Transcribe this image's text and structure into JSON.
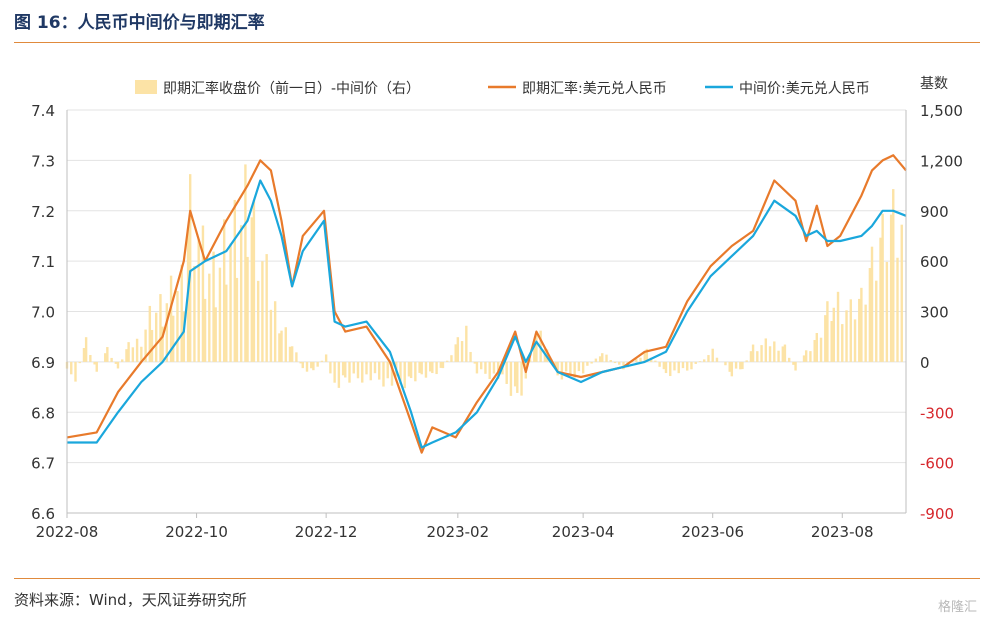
{
  "header": {
    "title": "图 16：人民币中间价与即期汇率"
  },
  "footer": {
    "source": "资料来源：Wind，天风证券研究所",
    "watermark": "格隆汇"
  },
  "colors": {
    "spot": "#e87a2b",
    "mid": "#1aa7dc",
    "spread": "#fce3a6",
    "negative_tick": "#d6262b",
    "header": "#1f3864"
  },
  "chart_data": {
    "type": "bar+line",
    "right_axis_title": "基数",
    "legend_position": "top",
    "x_ticks": [
      "2022-08",
      "2022-10",
      "2022-12",
      "2023-02",
      "2023-04",
      "2023-06",
      "2023-08"
    ],
    "x_range": [
      "2022-08-01",
      "2023-08-31"
    ],
    "y_left": {
      "ticks": [
        "6.6",
        "6.7",
        "6.8",
        "6.9",
        "7.0",
        "7.1",
        "7.2",
        "7.3",
        "7.4"
      ],
      "range": [
        6.6,
        7.4
      ]
    },
    "y_right": {
      "ticks": [
        "-900",
        "-600",
        "-300",
        "0",
        "300",
        "600",
        "900",
        "1,200",
        "1,500"
      ],
      "range": [
        -900,
        1500
      ]
    },
    "series": [
      {
        "name": "即期汇率收盘价（前一日）-中间价（右）",
        "kind": "bar",
        "axis": "right",
        "points": [
          [
            "2022-08-01",
            -80
          ],
          [
            "2022-08-05",
            -120
          ],
          [
            "2022-08-10",
            150
          ],
          [
            "2022-08-15",
            -60
          ],
          [
            "2022-08-20",
            90
          ],
          [
            "2022-08-25",
            -40
          ],
          [
            "2022-08-30",
            120
          ],
          [
            "2022-09-05",
            180
          ],
          [
            "2022-09-10",
            380
          ],
          [
            "2022-09-15",
            420
          ],
          [
            "2022-09-20",
            550
          ],
          [
            "2022-09-25",
            600
          ],
          [
            "2022-09-28",
            1300
          ],
          [
            "2022-10-05",
            750
          ],
          [
            "2022-10-10",
            650
          ],
          [
            "2022-10-15",
            920
          ],
          [
            "2022-10-20",
            1000
          ],
          [
            "2022-10-25",
            1250
          ],
          [
            "2022-10-28",
            1120
          ],
          [
            "2022-11-05",
            500
          ],
          [
            "2022-11-10",
            300
          ],
          [
            "2022-11-15",
            150
          ],
          [
            "2022-11-20",
            -60
          ],
          [
            "2022-11-25",
            -80
          ],
          [
            "2022-12-01",
            60
          ],
          [
            "2022-12-05",
            -200
          ],
          [
            "2022-12-10",
            -150
          ],
          [
            "2022-12-20",
            -120
          ],
          [
            "2023-01-05",
            -180
          ],
          [
            "2023-01-10",
            -130
          ],
          [
            "2023-01-15",
            -100
          ],
          [
            "2023-01-20",
            -90
          ],
          [
            "2023-01-25",
            -50
          ],
          [
            "2023-02-01",
            150
          ],
          [
            "2023-02-05",
            250
          ],
          [
            "2023-02-10",
            -80
          ],
          [
            "2023-02-20",
            -120
          ],
          [
            "2023-03-01",
            -250
          ],
          [
            "2023-03-05",
            -160
          ],
          [
            "2023-03-10",
            280
          ],
          [
            "2023-03-15",
            120
          ],
          [
            "2023-03-20",
            -130
          ],
          [
            "2023-04-01",
            -80
          ],
          [
            "2023-04-10",
            70
          ],
          [
            "2023-04-20",
            -60
          ],
          [
            "2023-05-01",
            90
          ],
          [
            "2023-05-10",
            -90
          ],
          [
            "2023-05-20",
            -70
          ],
          [
            "2023-06-01",
            80
          ],
          [
            "2023-06-10",
            -100
          ],
          [
            "2023-06-15",
            -50
          ],
          [
            "2023-06-20",
            120
          ],
          [
            "2023-06-28",
            150
          ],
          [
            "2023-07-05",
            120
          ],
          [
            "2023-07-10",
            -60
          ],
          [
            "2023-07-15",
            80
          ],
          [
            "2023-07-20",
            200
          ],
          [
            "2023-07-25",
            420
          ],
          [
            "2023-07-28",
            520
          ],
          [
            "2023-08-05",
            380
          ],
          [
            "2023-08-10",
            450
          ],
          [
            "2023-08-15",
            700
          ],
          [
            "2023-08-20",
            900
          ],
          [
            "2023-08-25",
            1050
          ],
          [
            "2023-08-31",
            900
          ]
        ]
      },
      {
        "name": "即期汇率:美元兑人民币",
        "kind": "line",
        "axis": "left",
        "points": [
          [
            "2022-08-01",
            6.75
          ],
          [
            "2022-08-15",
            6.76
          ],
          [
            "2022-08-25",
            6.84
          ],
          [
            "2022-09-05",
            6.9
          ],
          [
            "2022-09-15",
            6.95
          ],
          [
            "2022-09-25",
            7.1
          ],
          [
            "2022-09-28",
            7.2
          ],
          [
            "2022-10-05",
            7.1
          ],
          [
            "2022-10-15",
            7.18
          ],
          [
            "2022-10-25",
            7.25
          ],
          [
            "2022-10-31",
            7.3
          ],
          [
            "2022-11-05",
            7.28
          ],
          [
            "2022-11-10",
            7.18
          ],
          [
            "2022-11-15",
            7.05
          ],
          [
            "2022-11-20",
            7.15
          ],
          [
            "2022-11-30",
            7.2
          ],
          [
            "2022-12-05",
            7.0
          ],
          [
            "2022-12-10",
            6.96
          ],
          [
            "2022-12-20",
            6.97
          ],
          [
            "2022-12-31",
            6.9
          ],
          [
            "2023-01-10",
            6.78
          ],
          [
            "2023-01-15",
            6.72
          ],
          [
            "2023-01-20",
            6.77
          ],
          [
            "2023-01-31",
            6.75
          ],
          [
            "2023-02-10",
            6.82
          ],
          [
            "2023-02-20",
            6.88
          ],
          [
            "2023-02-28",
            6.96
          ],
          [
            "2023-03-05",
            6.88
          ],
          [
            "2023-03-10",
            6.96
          ],
          [
            "2023-03-20",
            6.88
          ],
          [
            "2023-03-31",
            6.87
          ],
          [
            "2023-04-10",
            6.88
          ],
          [
            "2023-04-20",
            6.89
          ],
          [
            "2023-04-30",
            6.92
          ],
          [
            "2023-05-10",
            6.93
          ],
          [
            "2023-05-20",
            7.02
          ],
          [
            "2023-05-31",
            7.09
          ],
          [
            "2023-06-10",
            7.13
          ],
          [
            "2023-06-20",
            7.16
          ],
          [
            "2023-06-30",
            7.26
          ],
          [
            "2023-07-10",
            7.22
          ],
          [
            "2023-07-15",
            7.14
          ],
          [
            "2023-07-20",
            7.21
          ],
          [
            "2023-07-25",
            7.13
          ],
          [
            "2023-07-31",
            7.15
          ],
          [
            "2023-08-10",
            7.23
          ],
          [
            "2023-08-15",
            7.28
          ],
          [
            "2023-08-20",
            7.3
          ],
          [
            "2023-08-25",
            7.31
          ],
          [
            "2023-08-31",
            7.28
          ]
        ]
      },
      {
        "name": "中间价:美元兑人民币",
        "kind": "line",
        "axis": "left",
        "points": [
          [
            "2022-08-01",
            6.74
          ],
          [
            "2022-08-15",
            6.74
          ],
          [
            "2022-08-25",
            6.8
          ],
          [
            "2022-09-05",
            6.86
          ],
          [
            "2022-09-15",
            6.9
          ],
          [
            "2022-09-25",
            6.96
          ],
          [
            "2022-09-28",
            7.08
          ],
          [
            "2022-10-05",
            7.1
          ],
          [
            "2022-10-15",
            7.12
          ],
          [
            "2022-10-25",
            7.18
          ],
          [
            "2022-10-31",
            7.26
          ],
          [
            "2022-11-05",
            7.22
          ],
          [
            "2022-11-10",
            7.15
          ],
          [
            "2022-11-15",
            7.05
          ],
          [
            "2022-11-20",
            7.12
          ],
          [
            "2022-11-30",
            7.18
          ],
          [
            "2022-12-05",
            6.98
          ],
          [
            "2022-12-10",
            6.97
          ],
          [
            "2022-12-20",
            6.98
          ],
          [
            "2022-12-31",
            6.92
          ],
          [
            "2023-01-10",
            6.8
          ],
          [
            "2023-01-15",
            6.73
          ],
          [
            "2023-01-20",
            6.74
          ],
          [
            "2023-01-31",
            6.76
          ],
          [
            "2023-02-10",
            6.8
          ],
          [
            "2023-02-20",
            6.87
          ],
          [
            "2023-02-28",
            6.95
          ],
          [
            "2023-03-05",
            6.9
          ],
          [
            "2023-03-10",
            6.94
          ],
          [
            "2023-03-20",
            6.88
          ],
          [
            "2023-03-31",
            6.86
          ],
          [
            "2023-04-10",
            6.88
          ],
          [
            "2023-04-20",
            6.89
          ],
          [
            "2023-04-30",
            6.9
          ],
          [
            "2023-05-10",
            6.92
          ],
          [
            "2023-05-20",
            7.0
          ],
          [
            "2023-05-31",
            7.07
          ],
          [
            "2023-06-10",
            7.11
          ],
          [
            "2023-06-20",
            7.15
          ],
          [
            "2023-06-30",
            7.22
          ],
          [
            "2023-07-10",
            7.19
          ],
          [
            "2023-07-15",
            7.15
          ],
          [
            "2023-07-20",
            7.16
          ],
          [
            "2023-07-25",
            7.14
          ],
          [
            "2023-07-31",
            7.14
          ],
          [
            "2023-08-10",
            7.15
          ],
          [
            "2023-08-15",
            7.17
          ],
          [
            "2023-08-20",
            7.2
          ],
          [
            "2023-08-25",
            7.2
          ],
          [
            "2023-08-31",
            7.19
          ]
        ]
      }
    ]
  }
}
